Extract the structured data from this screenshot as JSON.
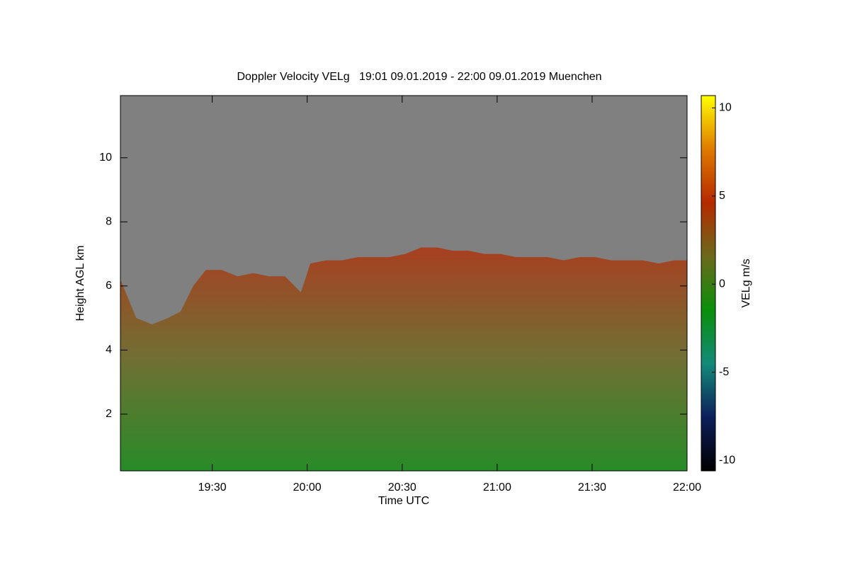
{
  "chart_data": {
    "type": "area",
    "title": "Doppler Velocity VELg   19:01 09.01.2019 - 22:00 09.01.2019 Muenchen",
    "x_label": "Time UTC",
    "y_label": "Height AGL km",
    "colorbar_label": "VELg m/s",
    "background_color": "#808080",
    "colors": [
      "#000000",
      "#0d1f5c",
      "#138a7a",
      "#0a8f0a",
      "#6b6a1a",
      "#b52a00",
      "#e07a00",
      "#ffff00"
    ],
    "x": [
      1141,
      1146,
      1151,
      1156,
      1160,
      1164,
      1168,
      1173,
      1178,
      1183,
      1188,
      1193,
      1198,
      1201,
      1206,
      1211,
      1216,
      1221,
      1226,
      1231,
      1236,
      1241,
      1246,
      1251,
      1256,
      1261,
      1266,
      1271,
      1276,
      1281,
      1286,
      1291,
      1296,
      1301,
      1306,
      1311,
      1316,
      1320
    ],
    "values": [
      6.2,
      5.0,
      4.8,
      5.0,
      5.2,
      6.0,
      6.5,
      6.5,
      6.3,
      6.4,
      6.3,
      6.3,
      5.8,
      6.7,
      6.8,
      6.8,
      6.9,
      6.9,
      6.9,
      7.0,
      7.2,
      7.2,
      7.1,
      7.1,
      7.0,
      7.0,
      6.9,
      6.9,
      6.9,
      6.8,
      6.9,
      6.9,
      6.8,
      6.8,
      6.8,
      6.7,
      6.8,
      6.8
    ],
    "xlim": [
      1141,
      1320
    ],
    "xticks": [
      {
        "value": 1170,
        "label": "19:30"
      },
      {
        "value": 1200,
        "label": "20:00"
      },
      {
        "value": 1230,
        "label": "20:30"
      },
      {
        "value": 1260,
        "label": "21:00"
      },
      {
        "value": 1290,
        "label": "21:30"
      },
      {
        "value": 1320,
        "label": "22:00"
      }
    ],
    "ylim": [
      0.23,
      11.94
    ],
    "yticks": [
      2,
      4,
      6,
      8,
      10
    ],
    "zlim": [
      -10.6,
      10.7
    ],
    "zticks": [
      -10,
      -5,
      0,
      5,
      10
    ]
  }
}
